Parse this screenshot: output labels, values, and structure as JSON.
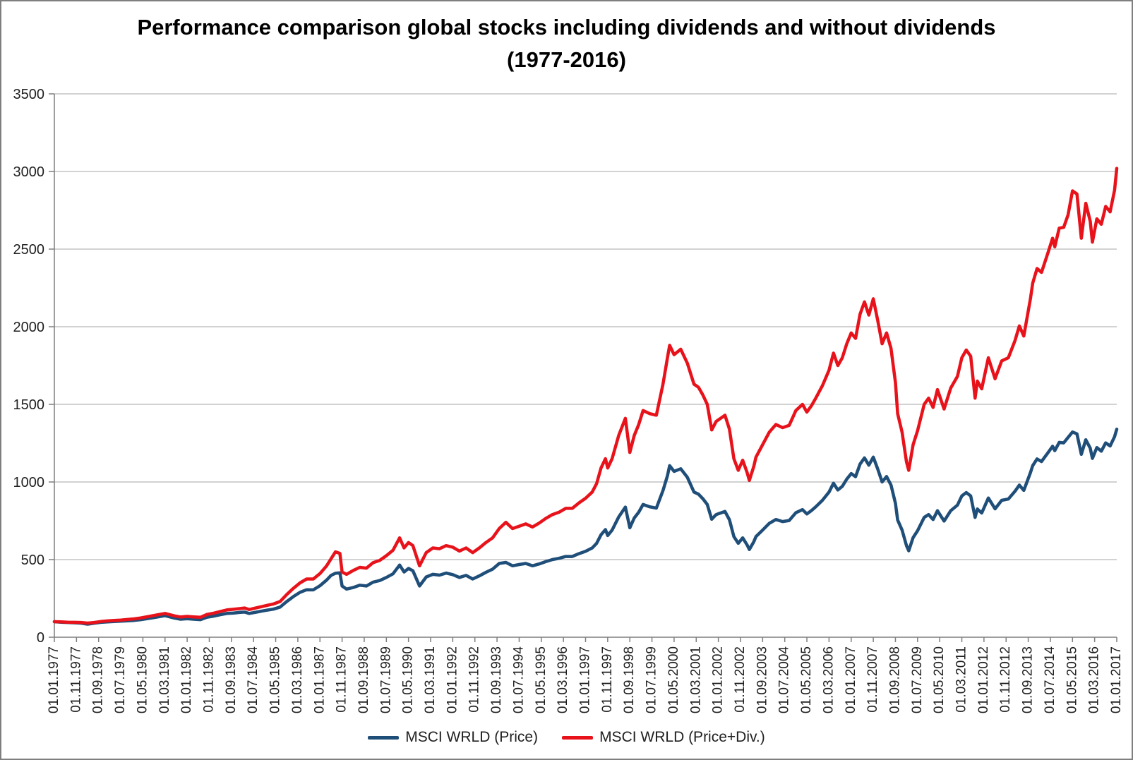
{
  "title": {
    "line1": "Performance comparison global stocks including dividends and without dividends",
    "line2": "(1977-2016)"
  },
  "chart_data": {
    "type": "line",
    "title": "Performance comparison global stocks including dividends and without dividends (1977-2016)",
    "grid": "horizontal",
    "legend_position": "bottom",
    "colors": {
      "grid": "#A6A6A6",
      "axis": "#7F7F7F",
      "tick_text": "#1f1f1f"
    },
    "y_axis": {
      "min": 0,
      "max": 3500,
      "step": 500,
      "ticks": [
        0,
        500,
        1000,
        1500,
        2000,
        2500,
        3000,
        3500
      ]
    },
    "x_axis": {
      "total_months": 480,
      "tick_step_months": 10,
      "tick_labels": [
        "01.01.1977",
        "01.11.1977",
        "01.09.1978",
        "01.07.1979",
        "01.05.1980",
        "01.03.1981",
        "01.01.1982",
        "01.11.1982",
        "01.09.1983",
        "01.07.1984",
        "01.05.1985",
        "01.03.1986",
        "01.01.1987",
        "01.11.1987",
        "01.09.1988",
        "01.07.1989",
        "01.05.1990",
        "01.03.1991",
        "01.01.1992",
        "01.11.1992",
        "01.09.1993",
        "01.07.1994",
        "01.05.1995",
        "01.03.1996",
        "01.01.1997",
        "01.11.1997",
        "01.09.1998",
        "01.07.1999",
        "01.05.2000",
        "01.03.2001",
        "01.01.2002",
        "01.11.2002",
        "01.09.2003",
        "01.07.2004",
        "01.05.2005",
        "01.03.2006",
        "01.01.2007",
        "01.11.2007",
        "01.09.2008",
        "01.07.2009",
        "01.05.2010",
        "01.03.2011",
        "01.01.2012",
        "01.11.2012",
        "01.09.2013",
        "01.07.2014",
        "01.05.2015",
        "01.03.2016",
        "01.01.2017"
      ]
    },
    "x_months": [
      0,
      3,
      6,
      9,
      12,
      15,
      18,
      21,
      24,
      27,
      30,
      33,
      36,
      39,
      42,
      45,
      48,
      50,
      54,
      57,
      60,
      63,
      66,
      69,
      72,
      75,
      78,
      81,
      84,
      86,
      88,
      91,
      94,
      96,
      99,
      102,
      105,
      108,
      111,
      114,
      117,
      120,
      123,
      125,
      127,
      129,
      130,
      132,
      135,
      138,
      141,
      144,
      147,
      150,
      153,
      156,
      158,
      160,
      162,
      165,
      168,
      171,
      174,
      177,
      180,
      183,
      186,
      189,
      192,
      195,
      198,
      201,
      204,
      207,
      210,
      213,
      216,
      219,
      222,
      225,
      228,
      231,
      234,
      237,
      240,
      243,
      245,
      247,
      249,
      250,
      252,
      255,
      258,
      260,
      262,
      264,
      266,
      269,
      272,
      275,
      277,
      278,
      280,
      283,
      286,
      289,
      291,
      293,
      295,
      297,
      299,
      301,
      303,
      305,
      307,
      309,
      311,
      313,
      314,
      316,
      317,
      320,
      323,
      326,
      329,
      332,
      335,
      338,
      340,
      342,
      344,
      347,
      350,
      352,
      354,
      356,
      358,
      360,
      362,
      364,
      366,
      368,
      370,
      372,
      374,
      376,
      378,
      380,
      381,
      383,
      385,
      386,
      388,
      390,
      393,
      395,
      397,
      399,
      402,
      405,
      408,
      410,
      412,
      414,
      416,
      417,
      419,
      422,
      425,
      428,
      431,
      434,
      436,
      438,
      441,
      442,
      444,
      446,
      449,
      451,
      452,
      454,
      456,
      458,
      460,
      462,
      464,
      466,
      468,
      469,
      471,
      473,
      475,
      477,
      479,
      480
    ],
    "series": [
      {
        "name": "MSCI WRLD (Price)",
        "color": "#1F4E79",
        "stroke_width": 4.5,
        "values": [
          100,
          97,
          95,
          93,
          91,
          84,
          90,
          96,
          99,
          101,
          103,
          106,
          108,
          113,
          120,
          127,
          134,
          139,
          124,
          116,
          119,
          116,
          113,
          129,
          136,
          145,
          153,
          156,
          160,
          162,
          153,
          161,
          169,
          174,
          181,
          194,
          230,
          262,
          289,
          306,
          305,
          332,
          368,
          398,
          412,
          415,
          330,
          310,
          320,
          335,
          330,
          355,
          365,
          385,
          408,
          465,
          420,
          443,
          428,
          330,
          388,
          405,
          400,
          413,
          403,
          385,
          398,
          375,
          395,
          418,
          438,
          475,
          482,
          460,
          468,
          475,
          460,
          472,
          487,
          500,
          508,
          520,
          520,
          538,
          553,
          575,
          605,
          660,
          693,
          655,
          690,
          775,
          838,
          705,
          768,
          805,
          855,
          840,
          832,
          945,
          1040,
          1105,
          1068,
          1085,
          1030,
          935,
          922,
          892,
          855,
          760,
          790,
          800,
          810,
          757,
          648,
          605,
          640,
          594,
          565,
          615,
          648,
          690,
          733,
          758,
          745,
          752,
          802,
          822,
          794,
          815,
          840,
          882,
          935,
          992,
          948,
          972,
          1018,
          1054,
          1034,
          1115,
          1155,
          1108,
          1160,
          1083,
          1000,
          1035,
          980,
          862,
          755,
          690,
          590,
          557,
          642,
          686,
          772,
          790,
          758,
          815,
          748,
          815,
          851,
          910,
          932,
          910,
          772,
          826,
          800,
          897,
          827,
          882,
          890,
          940,
          980,
          946,
          1060,
          1105,
          1148,
          1132,
          1190,
          1230,
          1202,
          1255,
          1252,
          1287,
          1322,
          1310,
          1178,
          1272,
          1218,
          1152,
          1222,
          1198,
          1252,
          1232,
          1292,
          1340
        ]
      },
      {
        "name": "MSCI WRLD (Price+Div.)",
        "color": "#E8121B",
        "stroke_width": 4.5,
        "values": [
          100,
          99,
          97,
          96,
          95,
          91,
          95,
          101,
          105,
          108,
          110,
          114,
          118,
          124,
          132,
          140,
          148,
          153,
          138,
          130,
          134,
          131,
          128,
          147,
          155,
          166,
          176,
          180,
          185,
          188,
          178,
          188,
          198,
          205,
          214,
          230,
          275,
          315,
          350,
          375,
          375,
          410,
          460,
          505,
          550,
          540,
          420,
          405,
          430,
          450,
          445,
          480,
          495,
          525,
          560,
          640,
          575,
          610,
          590,
          460,
          545,
          575,
          570,
          590,
          580,
          555,
          575,
          545,
          575,
          610,
          640,
          700,
          740,
          700,
          715,
          730,
          710,
          735,
          765,
          790,
          805,
          830,
          830,
          865,
          895,
          935,
          990,
          1090,
          1150,
          1090,
          1150,
          1300,
          1410,
          1190,
          1300,
          1370,
          1460,
          1440,
          1430,
          1630,
          1800,
          1880,
          1820,
          1855,
          1765,
          1630,
          1610,
          1560,
          1500,
          1335,
          1390,
          1410,
          1430,
          1340,
          1150,
          1075,
          1140,
          1060,
          1010,
          1100,
          1160,
          1240,
          1320,
          1370,
          1350,
          1365,
          1460,
          1500,
          1450,
          1490,
          1540,
          1620,
          1720,
          1830,
          1750,
          1800,
          1890,
          1960,
          1925,
          2080,
          2160,
          2075,
          2180,
          2040,
          1890,
          1960,
          1860,
          1640,
          1440,
          1320,
          1130,
          1075,
          1240,
          1330,
          1500,
          1540,
          1480,
          1595,
          1470,
          1605,
          1680,
          1800,
          1850,
          1810,
          1540,
          1650,
          1600,
          1800,
          1665,
          1780,
          1800,
          1910,
          2005,
          1940,
          2180,
          2280,
          2375,
          2350,
          2480,
          2570,
          2515,
          2635,
          2640,
          2720,
          2875,
          2855,
          2570,
          2795,
          2680,
          2545,
          2695,
          2660,
          2775,
          2740,
          2880,
          3020
        ]
      }
    ]
  }
}
